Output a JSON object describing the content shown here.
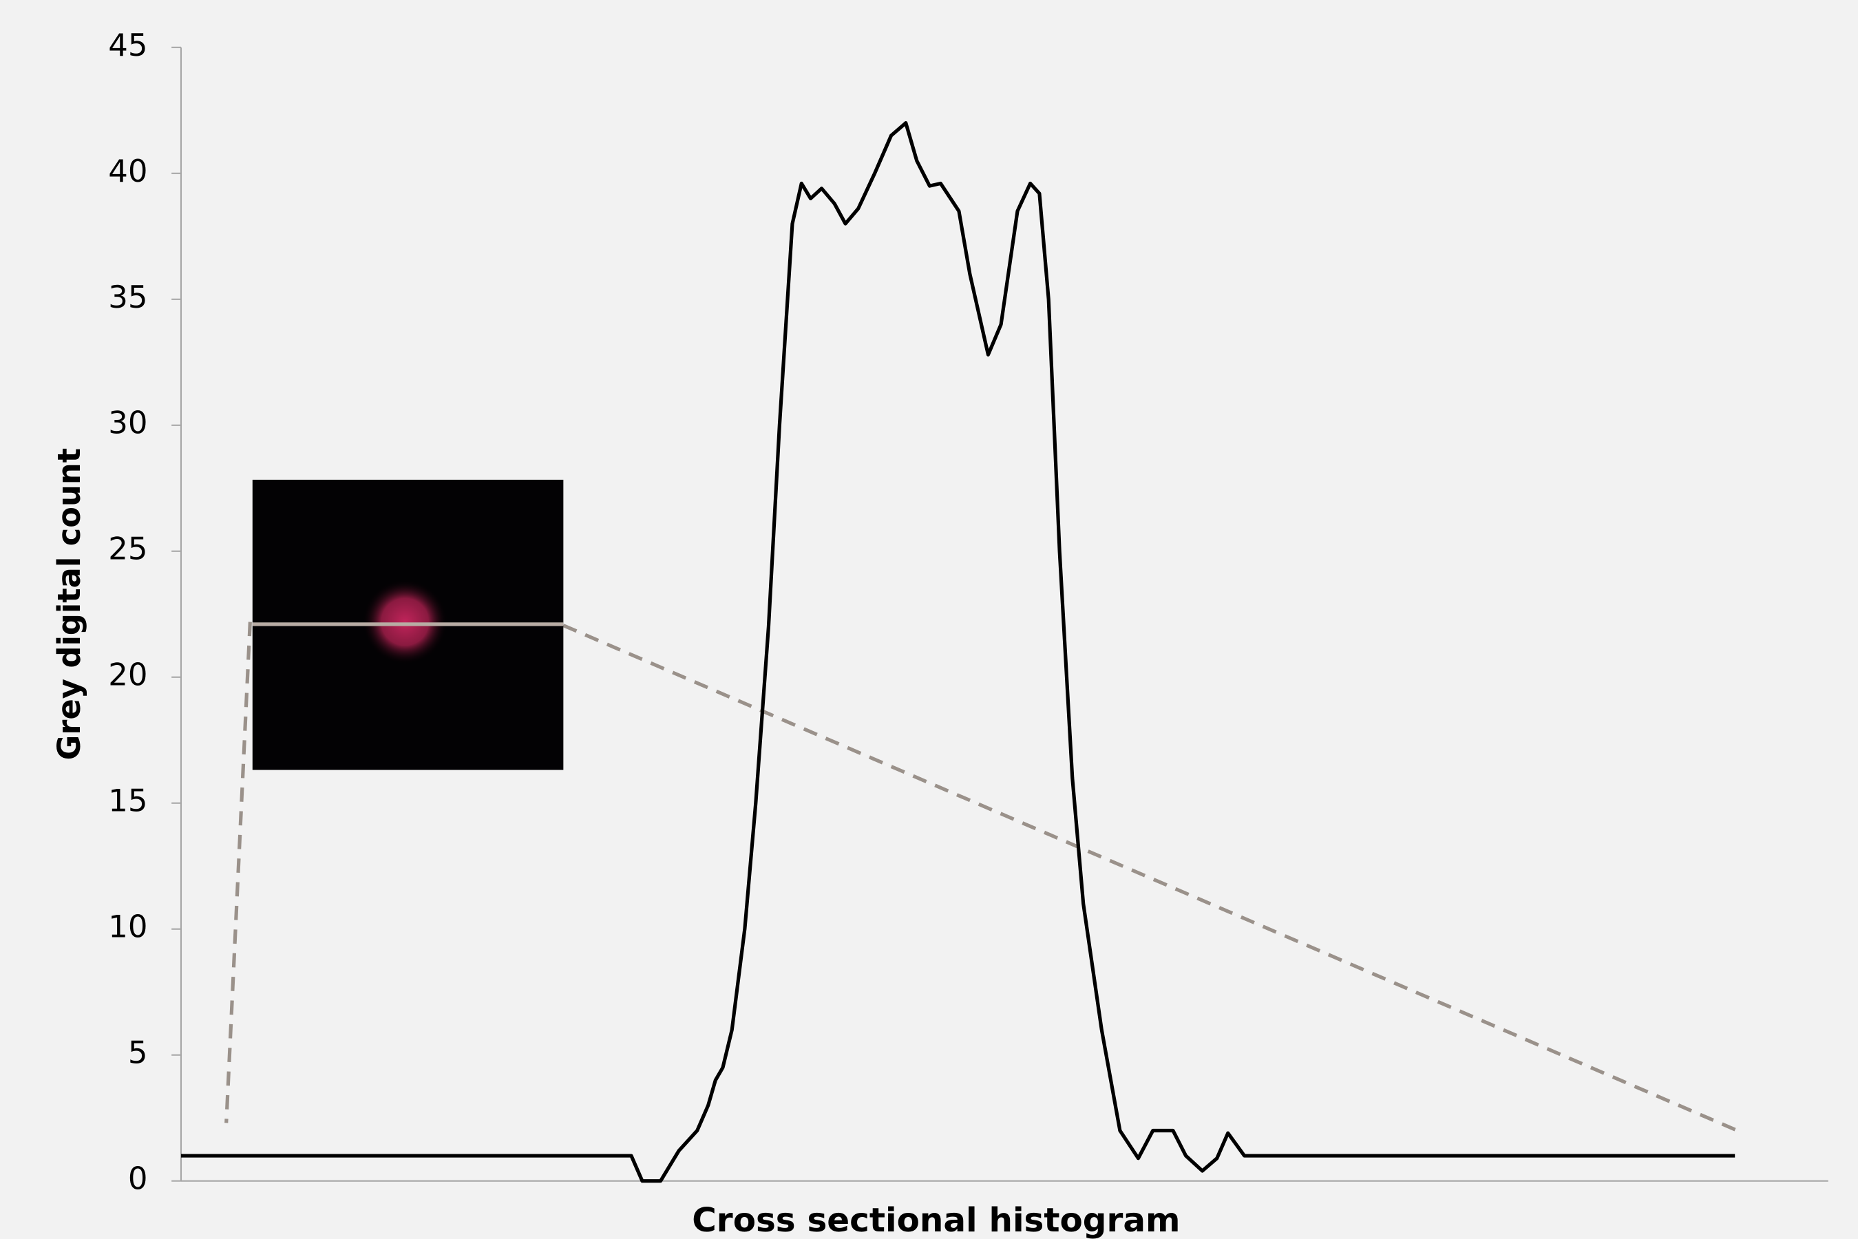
{
  "chart_data": {
    "type": "line",
    "x_label": "Cross sectional histogram",
    "y_label": "Grey digital count",
    "xlim": [
      0,
      9
    ],
    "ylim": [
      0,
      45
    ],
    "yticks": [
      0,
      5,
      10,
      15,
      20,
      25,
      30,
      35,
      40,
      45
    ],
    "color": "#000000",
    "x": [
      0,
      2.46,
      2.52,
      2.62,
      2.72,
      2.82,
      2.88,
      2.92,
      2.96,
      3.01,
      3.08,
      3.14,
      3.21,
      3.27,
      3.34,
      3.39,
      3.44,
      3.5,
      3.57,
      3.63,
      3.7,
      3.79,
      3.88,
      3.96,
      4.02,
      4.09,
      4.15,
      4.25,
      4.31,
      4.41,
      4.48,
      4.57,
      4.64,
      4.69,
      4.74,
      4.8,
      4.87,
      4.93,
      5.03,
      5.13,
      5.23,
      5.31,
      5.42,
      5.49,
      5.58,
      5.66,
      5.72,
      5.81,
      8.49
    ],
    "values": [
      1,
      1,
      0,
      0,
      1.2,
      2,
      3,
      4,
      4.5,
      6,
      10,
      15,
      22,
      30,
      38,
      39.6,
      39,
      39.4,
      38.8,
      38,
      38.6,
      40,
      41.5,
      42,
      40.5,
      39.5,
      39.6,
      38.5,
      36,
      32.8,
      34,
      38.5,
      39.6,
      39.2,
      35,
      25,
      16,
      11,
      6,
      2,
      0.9,
      2,
      2,
      1,
      0.4,
      0.9,
      1.9,
      1,
      1
    ]
  }
}
